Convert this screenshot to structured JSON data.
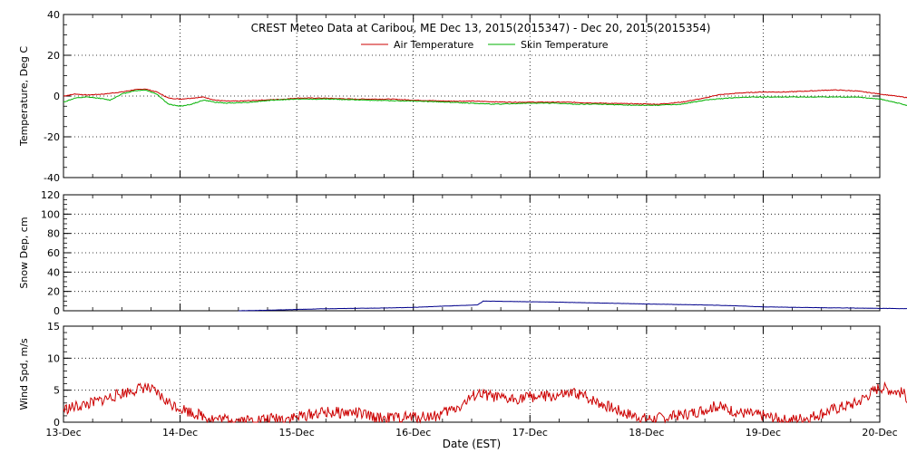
{
  "title": "CREST Meteo Data at Caribou, ME   Dec 13, 2015(2015347) - Dec 20, 2015(2015354)",
  "xlabel": "Date (EST)",
  "colors": {
    "air": "#cc0000",
    "skin": "#00b000",
    "snow": "#00008b",
    "wind": "#cc0000",
    "grid": "#000000"
  },
  "chart_data": [
    {
      "type": "line",
      "ylabel": "Temperature, Deg C",
      "ylim": [
        -40,
        40
      ],
      "yticks": [
        "40",
        "20",
        "0",
        "-20",
        "-40"
      ],
      "grid": true,
      "legend_position": "top-center",
      "x_unit": "days since 13-Dec 00:00",
      "series": [
        {
          "name": "Air Temperature",
          "points": [
            [
              0,
              0
            ],
            [
              0.1,
              1
            ],
            [
              0.2,
              0.5
            ],
            [
              0.35,
              1
            ],
            [
              0.5,
              2
            ],
            [
              0.6,
              3
            ],
            [
              0.7,
              3.5
            ],
            [
              0.8,
              2
            ],
            [
              0.9,
              -1
            ],
            [
              1,
              -1.5
            ],
            [
              1.1,
              -1
            ],
            [
              1.2,
              -0.5
            ],
            [
              1.3,
              -2
            ],
            [
              1.4,
              -2.5
            ],
            [
              1.5,
              -2.5
            ],
            [
              1.7,
              -2
            ],
            [
              1.9,
              -1.5
            ],
            [
              2,
              -1
            ],
            [
              2.2,
              -1
            ],
            [
              2.5,
              -1.5
            ],
            [
              2.8,
              -1.5
            ],
            [
              3,
              -2
            ],
            [
              3.3,
              -2.5
            ],
            [
              3.5,
              -2.5
            ],
            [
              3.8,
              -3
            ],
            [
              4,
              -3
            ],
            [
              4.3,
              -3
            ],
            [
              4.6,
              -3.5
            ],
            [
              4.9,
              -3.8
            ],
            [
              5.1,
              -4
            ],
            [
              5.3,
              -3
            ],
            [
              5.5,
              -1
            ],
            [
              5.6,
              0.5
            ],
            [
              5.8,
              1.5
            ],
            [
              6,
              2
            ],
            [
              6.2,
              2
            ],
            [
              6.4,
              2.5
            ],
            [
              6.6,
              3
            ],
            [
              6.8,
              2.5
            ],
            [
              7,
              1
            ],
            [
              7.2,
              -0.5
            ],
            [
              7.4,
              -2
            ],
            [
              7.6,
              -4
            ],
            [
              7.8,
              -6
            ],
            [
              8,
              -7
            ]
          ]
        },
        {
          "name": "Skin Temperature",
          "points": [
            [
              0,
              -3
            ],
            [
              0.05,
              -2
            ],
            [
              0.1,
              -1
            ],
            [
              0.2,
              -0.5
            ],
            [
              0.3,
              -1
            ],
            [
              0.4,
              -2
            ],
            [
              0.5,
              1
            ],
            [
              0.6,
              2.5
            ],
            [
              0.7,
              3
            ],
            [
              0.8,
              1
            ],
            [
              0.9,
              -4
            ],
            [
              1,
              -5
            ],
            [
              1.1,
              -4
            ],
            [
              1.2,
              -2
            ],
            [
              1.3,
              -3
            ],
            [
              1.4,
              -3.5
            ],
            [
              1.6,
              -3
            ],
            [
              1.8,
              -2
            ],
            [
              2,
              -1.5
            ],
            [
              2.3,
              -1.5
            ],
            [
              2.6,
              -2
            ],
            [
              3,
              -2.5
            ],
            [
              3.3,
              -3
            ],
            [
              3.5,
              -3.5
            ],
            [
              3.7,
              -4
            ],
            [
              4,
              -3.5
            ],
            [
              4.2,
              -3.5
            ],
            [
              4.4,
              -4
            ],
            [
              4.6,
              -4
            ],
            [
              4.9,
              -4.5
            ],
            [
              5.1,
              -4.5
            ],
            [
              5.3,
              -4
            ],
            [
              5.5,
              -2
            ],
            [
              5.7,
              -1
            ],
            [
              5.9,
              -0.5
            ],
            [
              6.2,
              -0.5
            ],
            [
              6.5,
              -0.5
            ],
            [
              6.8,
              -0.5
            ],
            [
              7,
              -1.5
            ],
            [
              7.2,
              -4
            ],
            [
              7.35,
              -7
            ],
            [
              7.5,
              -6
            ],
            [
              7.6,
              -3
            ],
            [
              7.7,
              -3.5
            ],
            [
              7.8,
              -6
            ],
            [
              7.9,
              -8
            ],
            [
              8,
              -10
            ]
          ]
        }
      ]
    },
    {
      "type": "line",
      "ylabel": "Snow Dep, cm",
      "ylim": [
        0,
        120
      ],
      "yticks": [
        "120",
        "100",
        "80",
        "60",
        "40",
        "20",
        "0"
      ],
      "grid": true,
      "series": [
        {
          "name": "",
          "points": [
            [
              1.5,
              0
            ],
            [
              1.7,
              0.5
            ],
            [
              1.9,
              1
            ],
            [
              2.2,
              2
            ],
            [
              2.5,
              2.5
            ],
            [
              2.8,
              3
            ],
            [
              3.0,
              3.5
            ],
            [
              3.3,
              5
            ],
            [
              3.55,
              6
            ],
            [
              3.6,
              10
            ],
            [
              3.9,
              9.5
            ],
            [
              4.2,
              9
            ],
            [
              4.6,
              8
            ],
            [
              5,
              7
            ],
            [
              5.5,
              6
            ],
            [
              5.8,
              5
            ],
            [
              6,
              4
            ],
            [
              6.3,
              3.5
            ],
            [
              6.6,
              3
            ],
            [
              7,
              2.5
            ],
            [
              7.4,
              2
            ],
            [
              7.8,
              1.5
            ],
            [
              8,
              1
            ]
          ]
        }
      ]
    },
    {
      "type": "line",
      "ylabel": "Wind Spd, m/s",
      "ylim": [
        0,
        15
      ],
      "yticks": [
        "15",
        "10",
        "5",
        "0"
      ],
      "grid": true,
      "series": [
        {
          "name": "",
          "points": [
            [
              0,
              2
            ],
            [
              0.25,
              3
            ],
            [
              0.5,
              4.5
            ],
            [
              0.7,
              5.5
            ],
            [
              0.8,
              4.5
            ],
            [
              0.9,
              3
            ],
            [
              1.1,
              1.5
            ],
            [
              1.3,
              0.5
            ],
            [
              1.6,
              0.3
            ],
            [
              2,
              0.8
            ],
            [
              2.2,
              1.5
            ],
            [
              2.5,
              1.5
            ],
            [
              2.7,
              0.6
            ],
            [
              3,
              0.8
            ],
            [
              3.2,
              1
            ],
            [
              3.4,
              2.5
            ],
            [
              3.55,
              4.5
            ],
            [
              3.8,
              3.5
            ],
            [
              4,
              4
            ],
            [
              4.2,
              4
            ],
            [
              4.4,
              4.5
            ],
            [
              4.6,
              3
            ],
            [
              4.8,
              1.5
            ],
            [
              5,
              0.5
            ],
            [
              5.2,
              0.8
            ],
            [
              5.4,
              1.5
            ],
            [
              5.6,
              2.5
            ],
            [
              5.8,
              1.5
            ],
            [
              6,
              1
            ],
            [
              6.2,
              0.3
            ],
            [
              6.4,
              0.8
            ],
            [
              6.6,
              2
            ],
            [
              6.8,
              3
            ],
            [
              7,
              5.5
            ],
            [
              7.2,
              4.5
            ],
            [
              7.3,
              2.5
            ],
            [
              7.5,
              4
            ],
            [
              7.6,
              5
            ],
            [
              7.8,
              5.5
            ],
            [
              8,
              5
            ]
          ]
        }
      ]
    }
  ],
  "x_ticks": [
    "13-Dec",
    "14-Dec",
    "15-Dec",
    "16-Dec",
    "17-Dec",
    "18-Dec",
    "19-Dec",
    "20-Dec"
  ]
}
